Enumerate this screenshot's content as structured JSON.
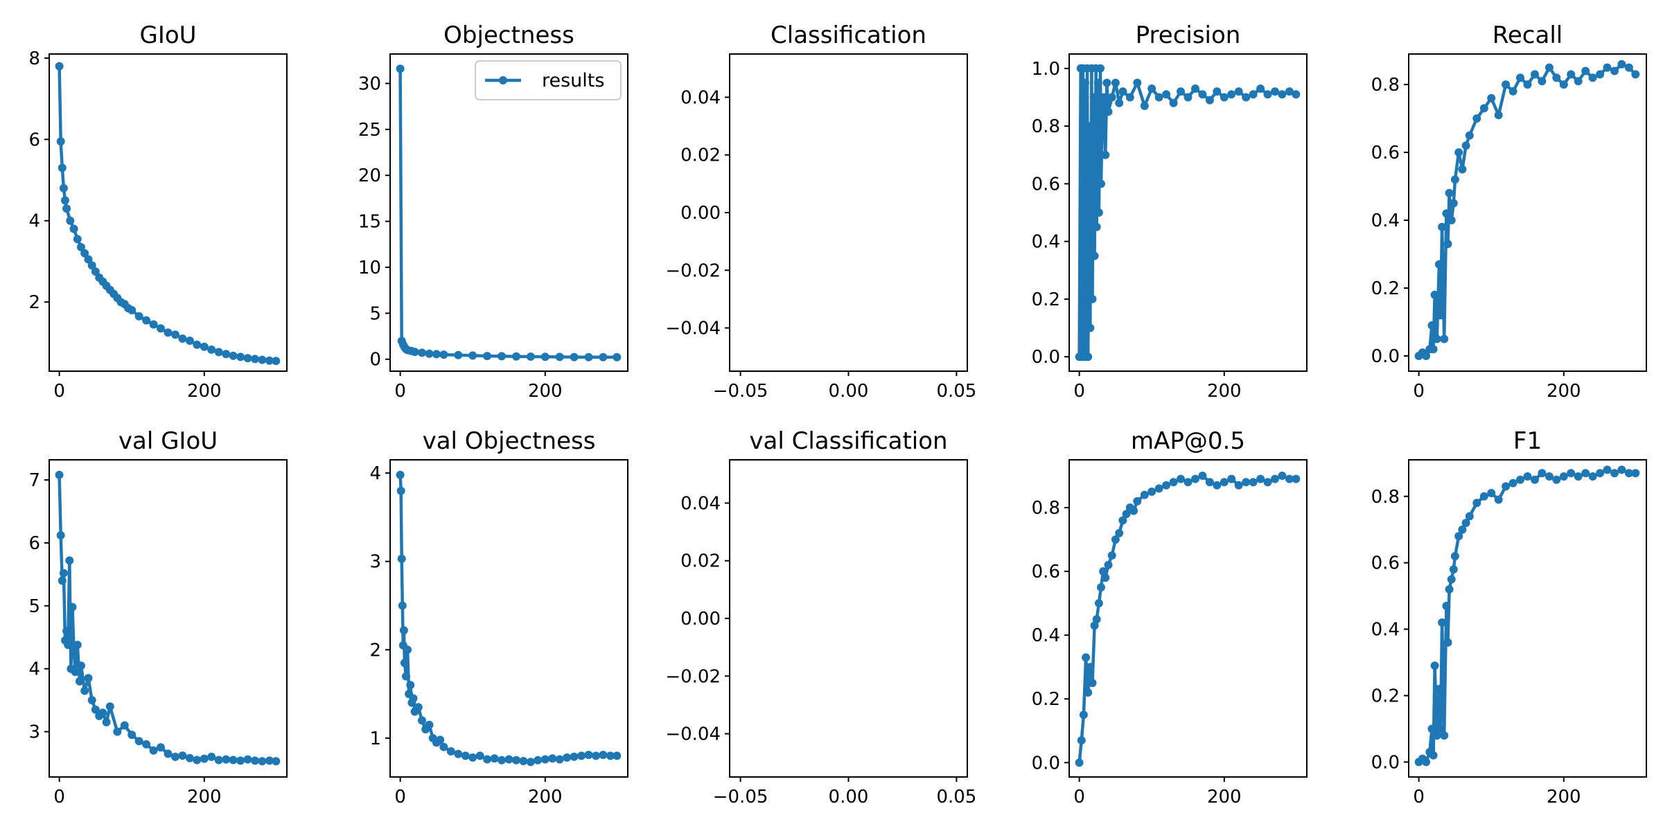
{
  "colors": {
    "series": "#1f77b4"
  },
  "legend": {
    "label": "results",
    "placement": "upper right"
  },
  "chart_data": [
    {
      "type": "line",
      "title": "GIoU",
      "xlabel": "",
      "ylabel": "",
      "xlim": [
        -14,
        314
      ],
      "ylim": [
        0.3,
        8.1
      ],
      "xticks": [
        0,
        200
      ],
      "yticks": [
        2,
        4,
        6,
        8
      ],
      "series": [
        {
          "x": [
            0,
            2,
            4,
            6,
            8,
            10,
            15,
            20,
            25,
            30,
            35,
            40,
            45,
            50,
            55,
            60,
            65,
            70,
            75,
            80,
            85,
            90,
            95,
            100,
            110,
            120,
            130,
            140,
            150,
            160,
            170,
            180,
            190,
            200,
            210,
            220,
            230,
            240,
            250,
            260,
            270,
            280,
            290,
            299
          ],
          "values": [
            7.8,
            5.95,
            5.3,
            4.8,
            4.5,
            4.3,
            4.0,
            3.8,
            3.55,
            3.35,
            3.2,
            3.05,
            2.9,
            2.75,
            2.6,
            2.5,
            2.4,
            2.3,
            2.2,
            2.1,
            2.0,
            1.95,
            1.85,
            1.8,
            1.65,
            1.55,
            1.45,
            1.35,
            1.25,
            1.2,
            1.1,
            1.05,
            0.95,
            0.9,
            0.83,
            0.77,
            0.72,
            0.68,
            0.65,
            0.62,
            0.6,
            0.58,
            0.56,
            0.55
          ]
        }
      ]
    },
    {
      "type": "line",
      "title": "Objectness",
      "xlabel": "",
      "ylabel": "",
      "xlim": [
        -14,
        314
      ],
      "ylim": [
        -1.3,
        33.2
      ],
      "xticks": [
        0,
        200
      ],
      "yticks": [
        0,
        5,
        10,
        15,
        20,
        25,
        30
      ],
      "show_legend": true,
      "series": [
        {
          "x": [
            0,
            2,
            4,
            6,
            8,
            10,
            15,
            20,
            30,
            40,
            50,
            60,
            80,
            100,
            120,
            140,
            160,
            180,
            200,
            220,
            240,
            260,
            280,
            299
          ],
          "values": [
            31.6,
            2.0,
            1.6,
            1.3,
            1.1,
            1.0,
            0.9,
            0.8,
            0.7,
            0.6,
            0.55,
            0.5,
            0.45,
            0.4,
            0.35,
            0.33,
            0.3,
            0.28,
            0.27,
            0.25,
            0.24,
            0.23,
            0.22,
            0.22
          ]
        }
      ]
    },
    {
      "type": "line",
      "title": "Classification",
      "xlabel": "",
      "ylabel": "",
      "xlim": [
        -0.055,
        0.055
      ],
      "ylim": [
        -0.055,
        0.055
      ],
      "xticks": [
        -0.05,
        0.0,
        0.05
      ],
      "yticks": [
        -0.04,
        -0.02,
        0.0,
        0.02,
        0.04
      ],
      "xtick_labels": [
        "−0.05",
        "0.00",
        "0.05"
      ],
      "ytick_labels": [
        "−0.04",
        "−0.02",
        "0.00",
        "0.02",
        "0.04"
      ],
      "series": []
    },
    {
      "type": "line",
      "title": "Precision",
      "xlabel": "",
      "ylabel": "",
      "xlim": [
        -14,
        314
      ],
      "ylim": [
        -0.05,
        1.05
      ],
      "xticks": [
        0,
        200
      ],
      "yticks": [
        0.0,
        0.2,
        0.4,
        0.6,
        0.8,
        1.0
      ],
      "series": [
        {
          "x": [
            0,
            2,
            3,
            5,
            6,
            8,
            9,
            11,
            12,
            14,
            15,
            17,
            18,
            20,
            21,
            23,
            24,
            26,
            27,
            29,
            30,
            32,
            34,
            36,
            38,
            40,
            45,
            50,
            55,
            60,
            70,
            80,
            90,
            100,
            110,
            120,
            130,
            140,
            150,
            160,
            170,
            180,
            190,
            200,
            210,
            220,
            230,
            240,
            250,
            260,
            270,
            280,
            290,
            299
          ],
          "values": [
            0.0,
            1.0,
            0.0,
            1.0,
            0.0,
            0.95,
            0.0,
            1.0,
            0.0,
            0.8,
            0.1,
            1.0,
            0.2,
            0.9,
            0.35,
            1.0,
            0.45,
            0.95,
            0.5,
            1.0,
            0.6,
            0.85,
            0.9,
            0.7,
            0.95,
            0.85,
            0.9,
            0.95,
            0.88,
            0.92,
            0.9,
            0.95,
            0.87,
            0.93,
            0.9,
            0.91,
            0.88,
            0.92,
            0.9,
            0.93,
            0.91,
            0.89,
            0.92,
            0.9,
            0.91,
            0.92,
            0.9,
            0.91,
            0.93,
            0.91,
            0.92,
            0.91,
            0.92,
            0.91
          ]
        }
      ]
    },
    {
      "type": "line",
      "title": "Recall",
      "xlabel": "",
      "ylabel": "",
      "xlim": [
        -14,
        314
      ],
      "ylim": [
        -0.045,
        0.89
      ],
      "xticks": [
        0,
        200
      ],
      "yticks": [
        0.0,
        0.2,
        0.4,
        0.6,
        0.8
      ],
      "series": [
        {
          "x": [
            0,
            5,
            10,
            15,
            18,
            20,
            22,
            25,
            28,
            30,
            32,
            35,
            38,
            40,
            42,
            45,
            48,
            50,
            55,
            60,
            65,
            70,
            80,
            90,
            100,
            110,
            120,
            130,
            140,
            150,
            160,
            170,
            180,
            190,
            200,
            210,
            220,
            230,
            240,
            250,
            260,
            270,
            280,
            290,
            299
          ],
          "values": [
            0.0,
            0.01,
            0.0,
            0.02,
            0.09,
            0.02,
            0.18,
            0.05,
            0.27,
            0.12,
            0.38,
            0.05,
            0.42,
            0.33,
            0.48,
            0.4,
            0.45,
            0.52,
            0.6,
            0.55,
            0.62,
            0.65,
            0.7,
            0.73,
            0.76,
            0.71,
            0.8,
            0.78,
            0.82,
            0.8,
            0.83,
            0.81,
            0.85,
            0.82,
            0.8,
            0.83,
            0.81,
            0.84,
            0.82,
            0.83,
            0.85,
            0.84,
            0.86,
            0.85,
            0.83
          ]
        }
      ]
    },
    {
      "type": "line",
      "title": "val GIoU",
      "xlabel": "",
      "ylabel": "",
      "xlim": [
        -14,
        314
      ],
      "ylim": [
        2.28,
        7.32
      ],
      "xticks": [
        0,
        200
      ],
      "yticks": [
        3,
        4,
        5,
        6,
        7
      ],
      "series": [
        {
          "x": [
            0,
            2,
            4,
            6,
            8,
            10,
            12,
            14,
            16,
            18,
            20,
            22,
            25,
            28,
            30,
            35,
            40,
            45,
            50,
            55,
            60,
            65,
            70,
            80,
            90,
            100,
            110,
            120,
            130,
            140,
            150,
            160,
            170,
            180,
            190,
            200,
            210,
            220,
            230,
            240,
            250,
            260,
            270,
            280,
            290,
            299
          ],
          "values": [
            7.08,
            6.12,
            5.4,
            5.52,
            4.45,
            4.6,
            4.38,
            5.72,
            4.0,
            4.98,
            4.3,
            3.95,
            4.38,
            3.8,
            4.05,
            3.65,
            3.85,
            3.5,
            3.35,
            3.25,
            3.3,
            3.15,
            3.4,
            3.0,
            3.1,
            2.95,
            2.85,
            2.8,
            2.7,
            2.75,
            2.65,
            2.6,
            2.62,
            2.58,
            2.55,
            2.57,
            2.6,
            2.55,
            2.56,
            2.55,
            2.54,
            2.56,
            2.54,
            2.53,
            2.54,
            2.53
          ]
        }
      ]
    },
    {
      "type": "line",
      "title": "val Objectness",
      "xlabel": "",
      "ylabel": "",
      "xlim": [
        -14,
        314
      ],
      "ylim": [
        0.56,
        4.15
      ],
      "xticks": [
        0,
        200
      ],
      "yticks": [
        1,
        2,
        3,
        4
      ],
      "series": [
        {
          "x": [
            0,
            1,
            2,
            3,
            4,
            5,
            6,
            8,
            10,
            12,
            14,
            16,
            18,
            20,
            25,
            30,
            35,
            40,
            45,
            50,
            55,
            60,
            70,
            80,
            90,
            100,
            110,
            120,
            130,
            140,
            150,
            160,
            170,
            180,
            190,
            200,
            210,
            220,
            230,
            240,
            250,
            260,
            270,
            280,
            290,
            299
          ],
          "values": [
            3.98,
            3.8,
            3.03,
            2.5,
            2.05,
            2.22,
            1.85,
            1.7,
            2.0,
            1.5,
            1.6,
            1.4,
            1.45,
            1.3,
            1.35,
            1.2,
            1.1,
            1.15,
            1.0,
            0.95,
            0.98,
            0.9,
            0.85,
            0.82,
            0.8,
            0.78,
            0.8,
            0.76,
            0.77,
            0.75,
            0.76,
            0.75,
            0.74,
            0.73,
            0.75,
            0.76,
            0.77,
            0.76,
            0.78,
            0.79,
            0.8,
            0.81,
            0.8,
            0.81,
            0.8,
            0.8
          ]
        }
      ]
    },
    {
      "type": "line",
      "title": "val Classification",
      "xlabel": "",
      "ylabel": "",
      "xlim": [
        -0.055,
        0.055
      ],
      "ylim": [
        -0.055,
        0.055
      ],
      "xticks": [
        -0.05,
        0.0,
        0.05
      ],
      "yticks": [
        -0.04,
        -0.02,
        0.0,
        0.02,
        0.04
      ],
      "xtick_labels": [
        "−0.05",
        "0.00",
        "0.05"
      ],
      "ytick_labels": [
        "−0.04",
        "−0.02",
        "0.00",
        "0.02",
        "0.04"
      ],
      "series": []
    },
    {
      "type": "line",
      "title": "mAP@0.5",
      "xlabel": "",
      "ylabel": "",
      "xlim": [
        -14,
        314
      ],
      "ylim": [
        -0.045,
        0.95
      ],
      "xticks": [
        0,
        200
      ],
      "yticks": [
        0.0,
        0.2,
        0.4,
        0.6,
        0.8
      ],
      "series": [
        {
          "x": [
            0,
            3,
            6,
            9,
            12,
            15,
            18,
            21,
            24,
            27,
            30,
            33,
            36,
            40,
            45,
            50,
            55,
            60,
            65,
            70,
            75,
            80,
            90,
            100,
            110,
            120,
            130,
            140,
            150,
            160,
            170,
            180,
            190,
            200,
            210,
            220,
            230,
            240,
            250,
            260,
            270,
            280,
            290,
            299
          ],
          "values": [
            0.0,
            0.07,
            0.15,
            0.33,
            0.22,
            0.3,
            0.25,
            0.43,
            0.45,
            0.5,
            0.55,
            0.6,
            0.58,
            0.62,
            0.65,
            0.7,
            0.72,
            0.76,
            0.78,
            0.8,
            0.79,
            0.82,
            0.84,
            0.85,
            0.86,
            0.87,
            0.88,
            0.89,
            0.88,
            0.89,
            0.9,
            0.88,
            0.87,
            0.88,
            0.89,
            0.87,
            0.88,
            0.88,
            0.89,
            0.88,
            0.89,
            0.9,
            0.89,
            0.89
          ]
        }
      ]
    },
    {
      "type": "line",
      "title": "F1",
      "xlabel": "",
      "ylabel": "",
      "xlim": [
        -14,
        314
      ],
      "ylim": [
        -0.045,
        0.91
      ],
      "xticks": [
        0,
        200
      ],
      "yticks": [
        0.0,
        0.2,
        0.4,
        0.6,
        0.8
      ],
      "series": [
        {
          "x": [
            0,
            5,
            10,
            15,
            18,
            20,
            22,
            25,
            28,
            30,
            32,
            35,
            38,
            40,
            42,
            45,
            48,
            50,
            55,
            60,
            65,
            70,
            80,
            90,
            100,
            110,
            120,
            130,
            140,
            150,
            160,
            170,
            180,
            190,
            200,
            210,
            220,
            230,
            240,
            250,
            260,
            270,
            280,
            290,
            299
          ],
          "values": [
            0.0,
            0.01,
            0.0,
            0.03,
            0.1,
            0.02,
            0.29,
            0.08,
            0.22,
            0.1,
            0.42,
            0.08,
            0.47,
            0.36,
            0.52,
            0.55,
            0.58,
            0.62,
            0.68,
            0.7,
            0.72,
            0.74,
            0.78,
            0.8,
            0.81,
            0.79,
            0.83,
            0.84,
            0.85,
            0.86,
            0.85,
            0.87,
            0.86,
            0.85,
            0.86,
            0.87,
            0.86,
            0.87,
            0.86,
            0.87,
            0.88,
            0.87,
            0.88,
            0.87,
            0.87
          ]
        }
      ]
    }
  ]
}
